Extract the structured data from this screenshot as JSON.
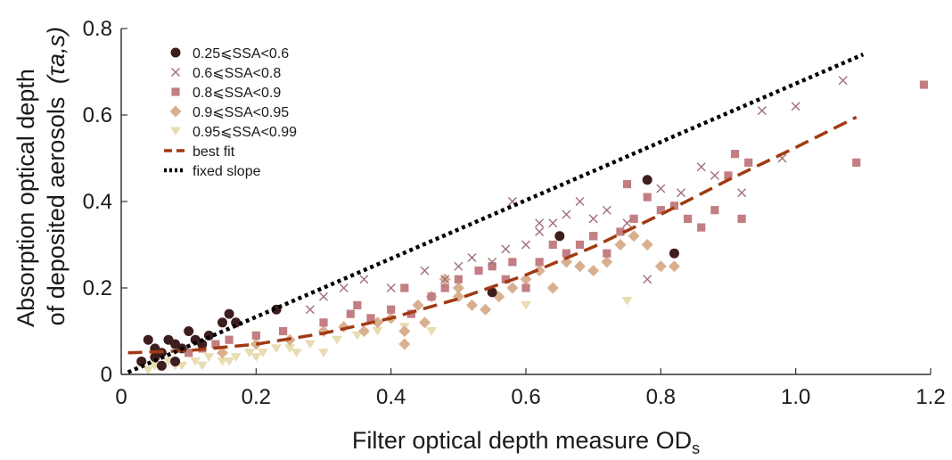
{
  "chart_data": {
    "type": "scatter",
    "xlabel": "Filter optical depth measure OD",
    "xlabel_sub": "s",
    "ylabel_line1": "Absorption optical depth",
    "ylabel_line2": "of deposited aerosols",
    "ylabel_symbol": "(τa,s)",
    "xlim": [
      0,
      1.2
    ],
    "ylim": [
      0,
      0.8
    ],
    "x_ticks": [
      "0",
      "0.2",
      "0.4",
      "0.6",
      "0.8",
      "1.0",
      "1.2"
    ],
    "y_ticks": [
      "0",
      "0.2",
      "0.4",
      "0.6",
      "0.8"
    ],
    "grid": false,
    "legend_position": "top-left",
    "colors": {
      "axis": "#333333",
      "best_fit": "#a13a12",
      "fixed_slope": "#000000"
    },
    "series": [
      {
        "name": "0.25⩽SSA<0.6",
        "marker": "circle",
        "color": "#3d1e1e",
        "points": [
          [
            0.03,
            0.03
          ],
          [
            0.04,
            0.08
          ],
          [
            0.05,
            0.06
          ],
          [
            0.05,
            0.04
          ],
          [
            0.06,
            0.05
          ],
          [
            0.07,
            0.08
          ],
          [
            0.08,
            0.07
          ],
          [
            0.09,
            0.06
          ],
          [
            0.1,
            0.1
          ],
          [
            0.11,
            0.08
          ],
          [
            0.12,
            0.07
          ],
          [
            0.13,
            0.09
          ],
          [
            0.15,
            0.12
          ],
          [
            0.16,
            0.14
          ],
          [
            0.17,
            0.12
          ],
          [
            0.06,
            0.02
          ],
          [
            0.08,
            0.03
          ],
          [
            0.23,
            0.15
          ],
          [
            0.55,
            0.19
          ],
          [
            0.65,
            0.32
          ],
          [
            0.78,
            0.45
          ],
          [
            0.82,
            0.28
          ]
        ]
      },
      {
        "name": "0.6⩽SSA<0.8",
        "marker": "x",
        "color": "#a07078",
        "points": [
          [
            0.28,
            0.15
          ],
          [
            0.3,
            0.18
          ],
          [
            0.33,
            0.2
          ],
          [
            0.36,
            0.22
          ],
          [
            0.4,
            0.2
          ],
          [
            0.45,
            0.24
          ],
          [
            0.48,
            0.22
          ],
          [
            0.5,
            0.25
          ],
          [
            0.52,
            0.27
          ],
          [
            0.55,
            0.26
          ],
          [
            0.57,
            0.29
          ],
          [
            0.6,
            0.3
          ],
          [
            0.62,
            0.33
          ],
          [
            0.64,
            0.35
          ],
          [
            0.66,
            0.37
          ],
          [
            0.68,
            0.4
          ],
          [
            0.7,
            0.36
          ],
          [
            0.72,
            0.38
          ],
          [
            0.75,
            0.35
          ],
          [
            0.78,
            0.22
          ],
          [
            0.8,
            0.43
          ],
          [
            0.83,
            0.42
          ],
          [
            0.86,
            0.48
          ],
          [
            0.88,
            0.46
          ],
          [
            0.92,
            0.42
          ],
          [
            0.95,
            0.61
          ],
          [
            0.98,
            0.5
          ],
          [
            1.0,
            0.62
          ],
          [
            1.07,
            0.68
          ],
          [
            0.58,
            0.4
          ],
          [
            0.62,
            0.35
          ]
        ]
      },
      {
        "name": "0.8⩽SSA<0.9",
        "marker": "square",
        "color": "#c27e83",
        "points": [
          [
            0.1,
            0.05
          ],
          [
            0.12,
            0.06
          ],
          [
            0.14,
            0.07
          ],
          [
            0.16,
            0.08
          ],
          [
            0.2,
            0.09
          ],
          [
            0.24,
            0.1
          ],
          [
            0.3,
            0.12
          ],
          [
            0.34,
            0.14
          ],
          [
            0.37,
            0.13
          ],
          [
            0.4,
            0.15
          ],
          [
            0.43,
            0.14
          ],
          [
            0.46,
            0.18
          ],
          [
            0.48,
            0.2
          ],
          [
            0.5,
            0.22
          ],
          [
            0.53,
            0.24
          ],
          [
            0.55,
            0.25
          ],
          [
            0.57,
            0.22
          ],
          [
            0.6,
            0.2
          ],
          [
            0.62,
            0.26
          ],
          [
            0.64,
            0.3
          ],
          [
            0.66,
            0.28
          ],
          [
            0.68,
            0.3
          ],
          [
            0.7,
            0.32
          ],
          [
            0.72,
            0.28
          ],
          [
            0.74,
            0.33
          ],
          [
            0.75,
            0.44
          ],
          [
            0.76,
            0.36
          ],
          [
            0.78,
            0.41
          ],
          [
            0.8,
            0.38
          ],
          [
            0.82,
            0.39
          ],
          [
            0.84,
            0.36
          ],
          [
            0.86,
            0.34
          ],
          [
            0.88,
            0.38
          ],
          [
            0.9,
            0.46
          ],
          [
            0.91,
            0.51
          ],
          [
            0.92,
            0.36
          ],
          [
            0.93,
            0.49
          ],
          [
            1.09,
            0.49
          ],
          [
            1.19,
            0.67
          ],
          [
            0.58,
            0.26
          ],
          [
            0.7,
            0.32
          ],
          [
            0.42,
            0.2
          ],
          [
            0.35,
            0.16
          ]
        ]
      },
      {
        "name": "0.9⩽SSA<0.95",
        "marker": "diamond",
        "color": "#d8b090",
        "points": [
          [
            0.15,
            0.05
          ],
          [
            0.2,
            0.07
          ],
          [
            0.25,
            0.08
          ],
          [
            0.3,
            0.1
          ],
          [
            0.33,
            0.11
          ],
          [
            0.36,
            0.1
          ],
          [
            0.38,
            0.12
          ],
          [
            0.4,
            0.13
          ],
          [
            0.42,
            0.1
          ],
          [
            0.44,
            0.16
          ],
          [
            0.46,
            0.18
          ],
          [
            0.48,
            0.22
          ],
          [
            0.5,
            0.2
          ],
          [
            0.52,
            0.16
          ],
          [
            0.54,
            0.15
          ],
          [
            0.56,
            0.18
          ],
          [
            0.58,
            0.2
          ],
          [
            0.6,
            0.22
          ],
          [
            0.62,
            0.24
          ],
          [
            0.64,
            0.2
          ],
          [
            0.66,
            0.26
          ],
          [
            0.68,
            0.25
          ],
          [
            0.7,
            0.24
          ],
          [
            0.72,
            0.26
          ],
          [
            0.74,
            0.3
          ],
          [
            0.76,
            0.32
          ],
          [
            0.78,
            0.3
          ],
          [
            0.8,
            0.25
          ],
          [
            0.82,
            0.25
          ],
          [
            0.42,
            0.07
          ],
          [
            0.45,
            0.12
          ],
          [
            0.5,
            0.18
          ]
        ]
      },
      {
        "name": "0.95⩽SSA<0.99",
        "marker": "triangle-down",
        "color": "#e8dcb0",
        "points": [
          [
            0.05,
            0.02
          ],
          [
            0.07,
            0.03
          ],
          [
            0.09,
            0.02
          ],
          [
            0.11,
            0.03
          ],
          [
            0.13,
            0.04
          ],
          [
            0.15,
            0.03
          ],
          [
            0.17,
            0.04
          ],
          [
            0.19,
            0.05
          ],
          [
            0.21,
            0.05
          ],
          [
            0.23,
            0.06
          ],
          [
            0.25,
            0.06
          ],
          [
            0.28,
            0.07
          ],
          [
            0.32,
            0.08
          ],
          [
            0.35,
            0.09
          ],
          [
            0.38,
            0.1
          ],
          [
            0.42,
            0.11
          ],
          [
            0.46,
            0.1
          ],
          [
            0.6,
            0.16
          ],
          [
            0.75,
            0.17
          ],
          [
            0.04,
            0.01
          ],
          [
            0.08,
            0.02
          ],
          [
            0.12,
            0.02
          ],
          [
            0.16,
            0.03
          ],
          [
            0.2,
            0.04
          ],
          [
            0.26,
            0.05
          ],
          [
            0.3,
            0.05
          ]
        ]
      },
      {
        "name": "best fit",
        "marker": "dashed-line",
        "color": "#a13a12",
        "points": [
          [
            0.01,
            0.05
          ],
          [
            0.1,
            0.055
          ],
          [
            0.2,
            0.07
          ],
          [
            0.3,
            0.095
          ],
          [
            0.4,
            0.13
          ],
          [
            0.5,
            0.175
          ],
          [
            0.6,
            0.23
          ],
          [
            0.7,
            0.295
          ],
          [
            0.8,
            0.37
          ],
          [
            0.9,
            0.45
          ],
          [
            1.0,
            0.525
          ],
          [
            1.09,
            0.595
          ]
        ]
      },
      {
        "name": "fixed slope",
        "marker": "dotted-line",
        "color": "#000000",
        "points": [
          [
            0.01,
            0.005
          ],
          [
            1.1,
            0.74
          ]
        ]
      }
    ]
  }
}
